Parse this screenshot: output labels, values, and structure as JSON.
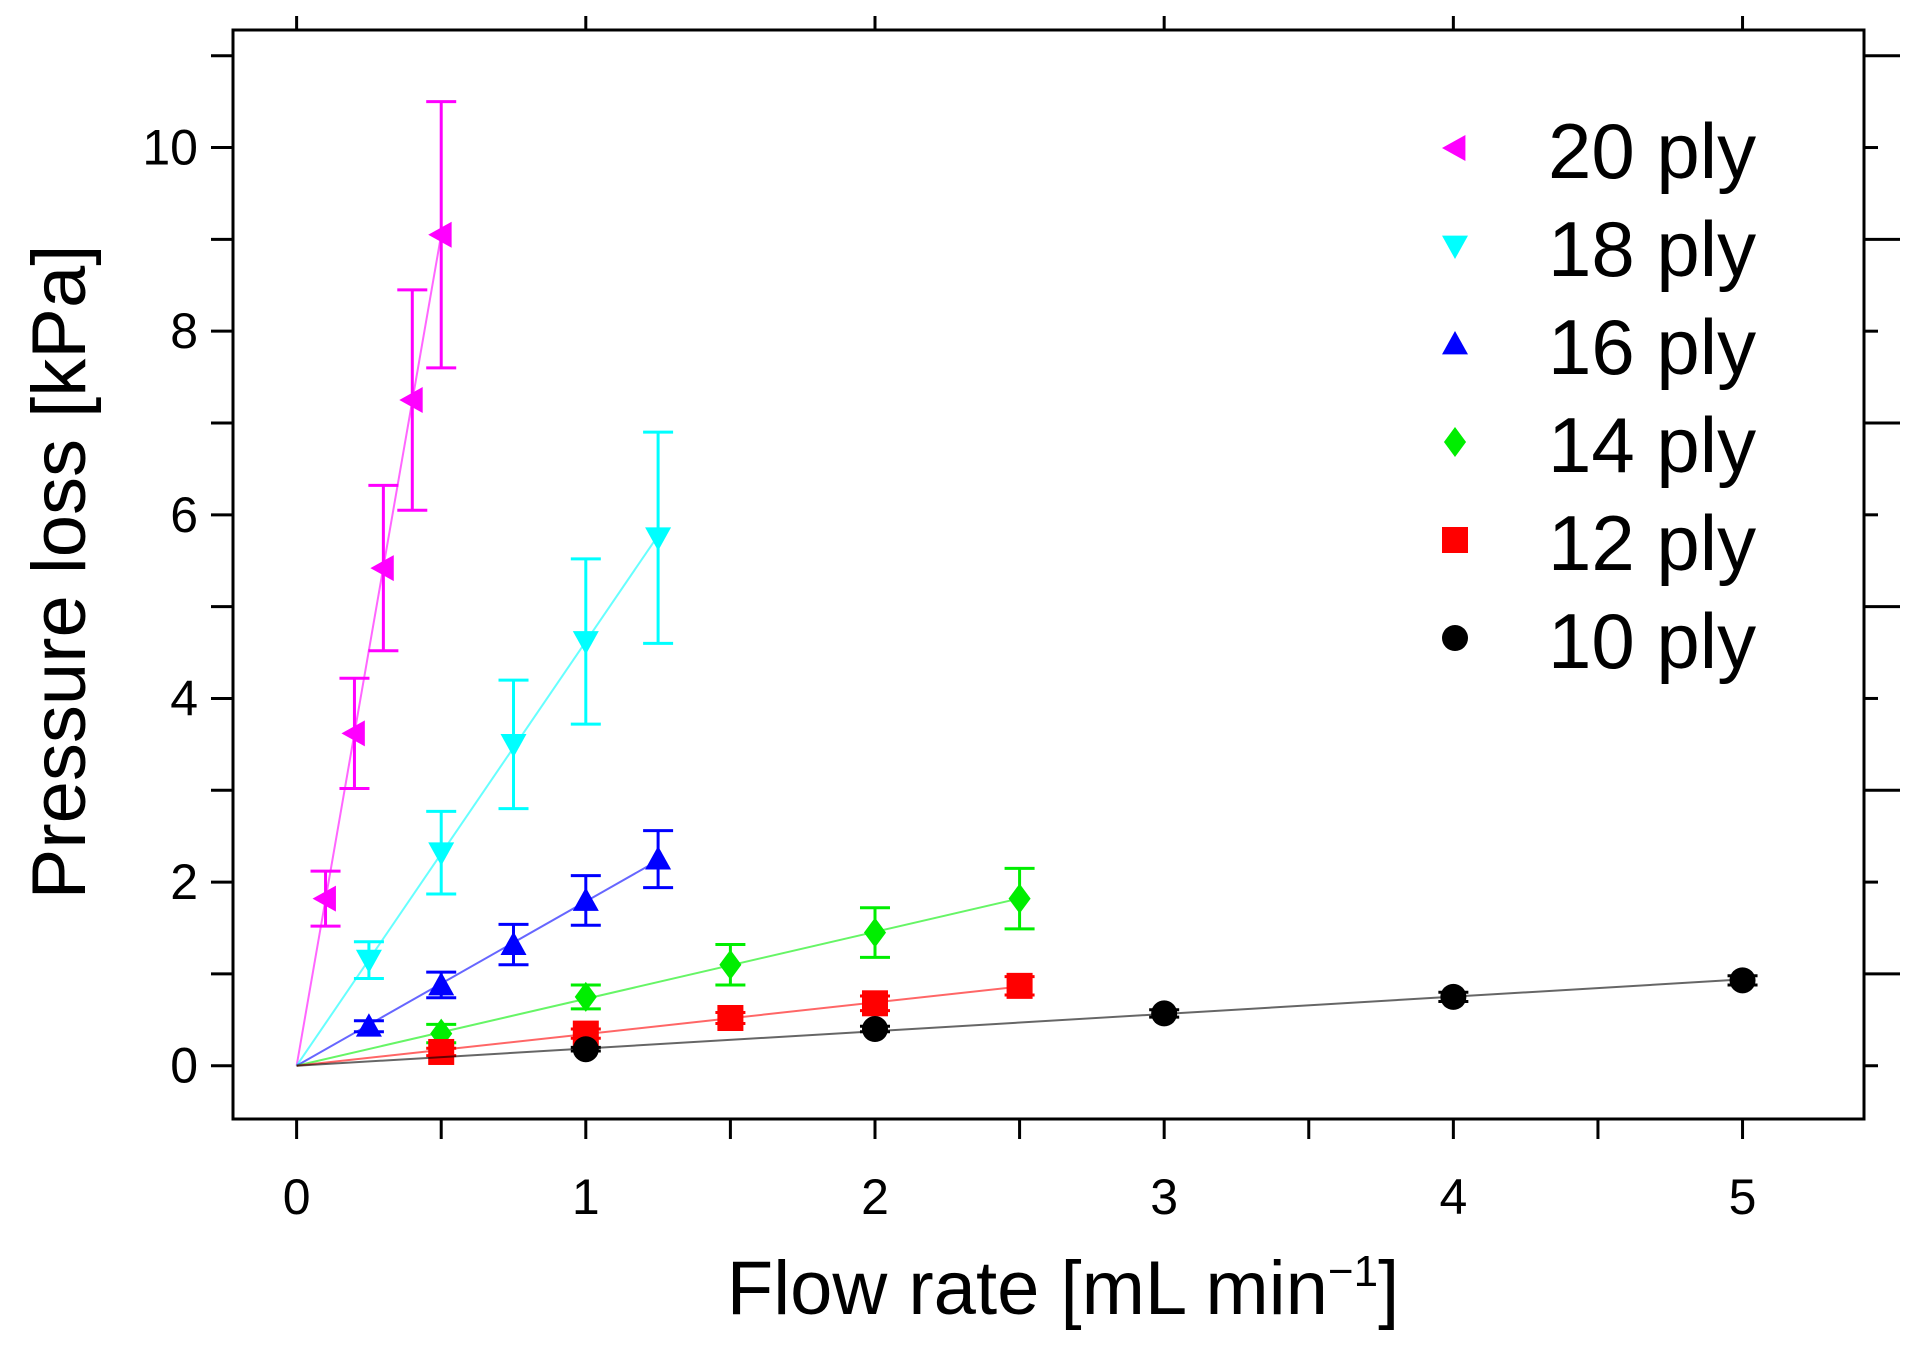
{
  "chart_data": {
    "type": "scatter",
    "title": "",
    "xlabel": "Flow rate [mL min",
    "xlabel_superscript": "−1",
    "xlabel_suffix": "]",
    "ylabel": "Pressure loss [kPa]",
    "xlim": [
      -0.22,
      5.42
    ],
    "ylim": [
      -0.58,
      11.28
    ],
    "xticks": [
      0,
      1,
      2,
      3,
      4,
      5
    ],
    "xtick_labels": [
      "0",
      "1",
      "2",
      "3",
      "4",
      "5"
    ],
    "x_minor_ticks": [
      0.5,
      1.5,
      2.5,
      3.5,
      4.5
    ],
    "yticks": [
      0,
      2,
      4,
      6,
      8,
      10
    ],
    "ytick_labels": [
      "0",
      "2",
      "4",
      "6",
      "8",
      "10"
    ],
    "y_minor_ticks": [
      1,
      3,
      5,
      7,
      9,
      11
    ],
    "grid": false,
    "legend_position": "top-right",
    "series": [
      {
        "name": "20 ply",
        "marker": "triangle-left",
        "color": "#ff00ff",
        "x": [
          0.1,
          0.2,
          0.3,
          0.4,
          0.5
        ],
        "y": [
          1.82,
          3.62,
          5.42,
          7.25,
          9.05
        ],
        "err": [
          0.3,
          0.6,
          0.9,
          1.2,
          1.45
        ]
      },
      {
        "name": "18 ply",
        "marker": "triangle-down",
        "color": "#00ffff",
        "x": [
          0.25,
          0.5,
          0.75,
          1.0,
          1.25
        ],
        "y": [
          1.15,
          2.32,
          3.5,
          4.62,
          5.75
        ],
        "err": [
          0.2,
          0.45,
          0.7,
          0.9,
          1.15
        ]
      },
      {
        "name": "16 ply",
        "marker": "triangle-up",
        "color": "#0000ff",
        "x": [
          0.25,
          0.5,
          0.75,
          1.0,
          1.25
        ],
        "y": [
          0.43,
          0.88,
          1.32,
          1.8,
          2.25
        ],
        "err": [
          0.06,
          0.14,
          0.22,
          0.27,
          0.31
        ]
      },
      {
        "name": "14 ply",
        "marker": "diamond",
        "color": "#00ee00",
        "x": [
          0.5,
          1.0,
          1.5,
          2.0,
          2.5
        ],
        "y": [
          0.35,
          0.75,
          1.1,
          1.45,
          1.82
        ],
        "err": [
          0.1,
          0.13,
          0.22,
          0.27,
          0.33
        ]
      },
      {
        "name": "12 ply",
        "marker": "square",
        "color": "#ff0000",
        "x": [
          0.5,
          1.0,
          1.5,
          2.0,
          2.5
        ],
        "y": [
          0.15,
          0.35,
          0.52,
          0.68,
          0.87
        ],
        "err": [
          0.04,
          0.05,
          0.06,
          0.08,
          0.1
        ]
      },
      {
        "name": "10 ply",
        "marker": "circle",
        "color": "#000000",
        "x": [
          1.0,
          2.0,
          3.0,
          4.0,
          5.0
        ],
        "y": [
          0.18,
          0.4,
          0.57,
          0.75,
          0.93
        ],
        "err": [
          0.02,
          0.03,
          0.04,
          0.05,
          0.05
        ]
      }
    ]
  }
}
